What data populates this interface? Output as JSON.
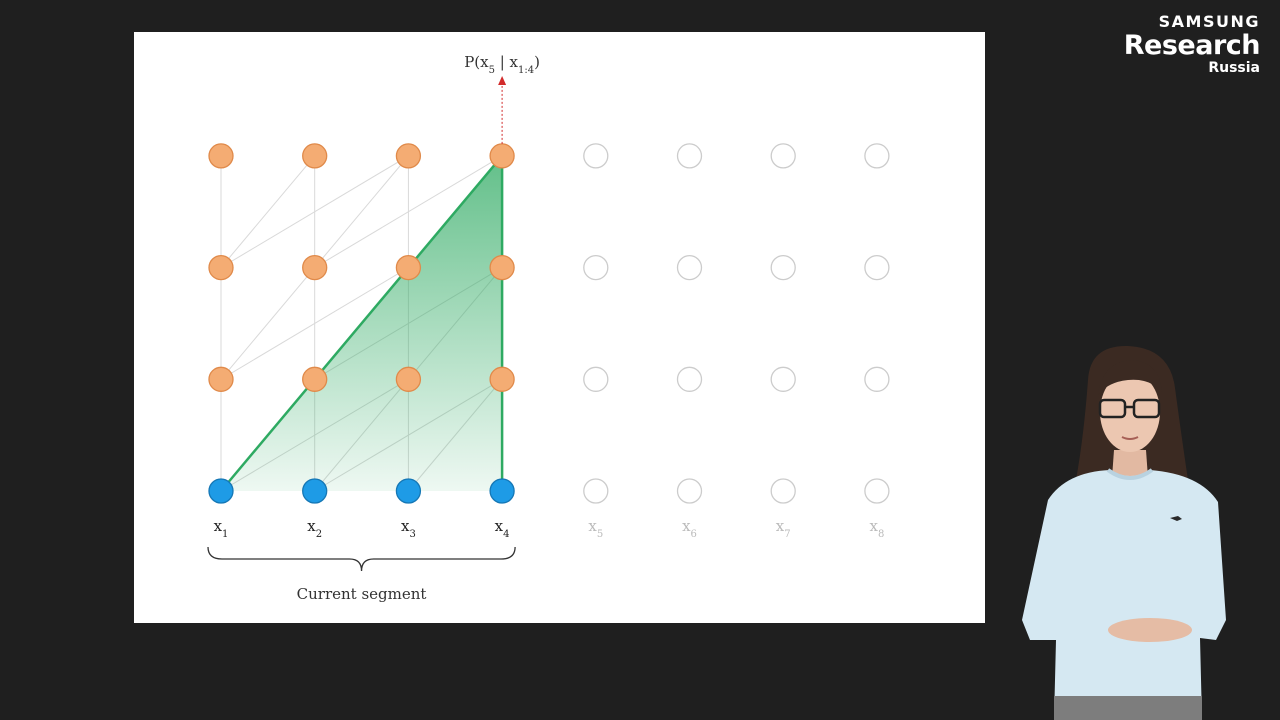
{
  "logo": {
    "brand": "SAMSUNG",
    "name": "Research",
    "region": "Russia"
  },
  "diagram": {
    "output_label": {
      "main": "P(x",
      "sub1": "5",
      "mid": " | x",
      "sub2": "1:4",
      "end": ")"
    },
    "tokens": [
      {
        "base": "x",
        "sub": "1",
        "active": true
      },
      {
        "base": "x",
        "sub": "2",
        "active": true
      },
      {
        "base": "x",
        "sub": "3",
        "active": true
      },
      {
        "base": "x",
        "sub": "4",
        "active": true
      },
      {
        "base": "x",
        "sub": "5",
        "active": false
      },
      {
        "base": "x",
        "sub": "6",
        "active": false
      },
      {
        "base": "x",
        "sub": "7",
        "active": false
      },
      {
        "base": "x",
        "sub": "8",
        "active": false
      }
    ],
    "layers": 4,
    "segment_label": "Current segment",
    "colors": {
      "input": "#1e9be6",
      "hidden": "#f4ac73",
      "hidden_stroke": "#e08a4a",
      "input_stroke": "#1577b5",
      "inactive_stroke": "#cccccc",
      "connection": "#d9d9d9",
      "receptive_field": "#2eaa62",
      "arrow": "#d22b2b",
      "inactive_label": "#bbbbbb"
    }
  }
}
